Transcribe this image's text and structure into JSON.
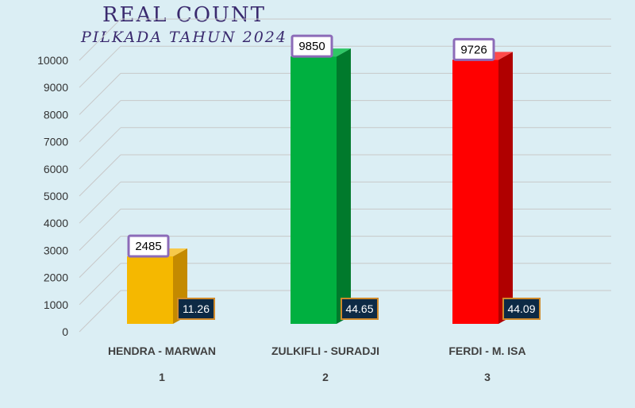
{
  "chart_data": {
    "type": "bar",
    "title": "REAL COUNT",
    "subtitle": "PILKADA TAHUN 2024",
    "xlabel": "",
    "ylabel": "",
    "ylim": [
      0,
      10000
    ],
    "yticks": [
      0,
      1000,
      2000,
      3000,
      4000,
      5000,
      6000,
      7000,
      8000,
      9000,
      10000
    ],
    "grid": true,
    "categories": [
      "HENDRA - MARWAN",
      "ZULKIFLI - SURADJI",
      "FERDI - M. ISA"
    ],
    "numbers": [
      "1",
      "2",
      "3"
    ],
    "values": [
      2485,
      9850,
      9726
    ],
    "value_labels": [
      "2485",
      "9850",
      "9726"
    ],
    "percent_labels": [
      "11.26",
      "44.65",
      "44.09"
    ],
    "colors": {
      "bars": [
        "#f5b800",
        "#00b040",
        "#ff0000"
      ],
      "sides": [
        "#c48a00",
        "#007a2c",
        "#b00000"
      ],
      "tops": [
        "#f7c94a",
        "#2fc766",
        "#ff4a4a"
      ],
      "value_label_border": "#8c6bb8",
      "percent_label_bg": "#0d2a45",
      "percent_label_border": "#d08a2a",
      "grid": "#c8c8c8"
    }
  }
}
